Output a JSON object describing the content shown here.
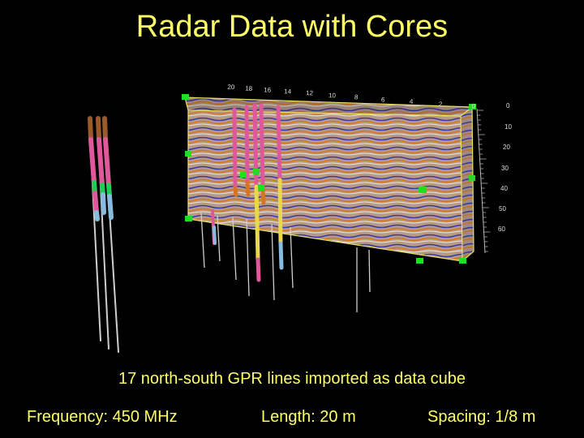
{
  "title": "Radar Data with Cores",
  "caption": "17 north-south GPR lines imported as data cube",
  "footer": {
    "frequency": "Frequency: 450 MHz",
    "length": "Length: 20 m",
    "spacing": "Spacing: 1/8 m"
  },
  "top_axis_ticks": [
    "20",
    "18",
    "16",
    "14",
    "12",
    "10",
    "8",
    "6",
    "4",
    "2",
    "0"
  ],
  "depth_axis_ticks": [
    "0",
    "10",
    "20",
    "30",
    "40",
    "50",
    "60"
  ],
  "colors": {
    "text": "#ffff66",
    "cube_front": "#b59a88",
    "band_orange": "#d8731f",
    "band_blue": "#3a3aa0",
    "marker_green": "#22dd22",
    "core_pink": "#e0589c",
    "core_brown": "#9a5a2a",
    "core_green": "#22cc55",
    "core_blue": "#88bbdd",
    "core_yellow": "#e8d84a"
  }
}
